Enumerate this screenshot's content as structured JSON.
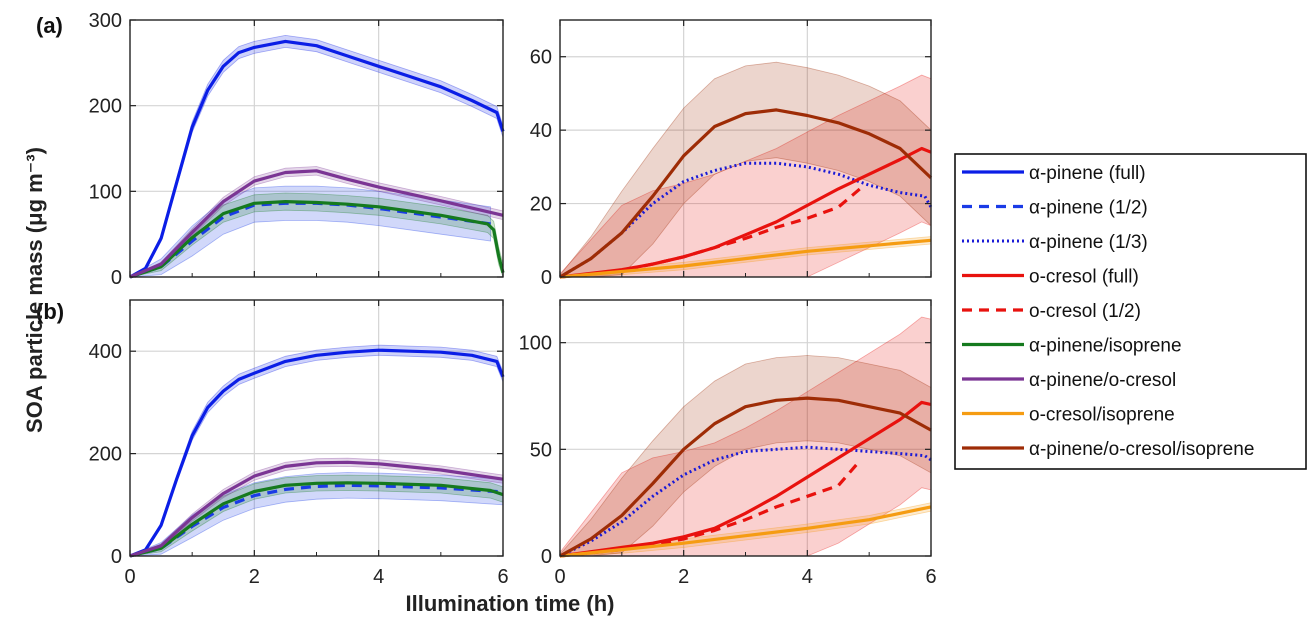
{
  "figure": {
    "xlabel": "Illumination time (h)",
    "ylabel": "SOA particle mass (μg m⁻³)",
    "panel_labels": [
      "(a)",
      "(b)"
    ]
  },
  "legend": [
    {
      "key": "ap_full",
      "label": "α-pinene (full)",
      "color": "#0b1ee6",
      "dash": "solid"
    },
    {
      "key": "ap_half",
      "label": "α-pinene (1/2)",
      "color": "#1a3be6",
      "dash": "dashed"
    },
    {
      "key": "ap_third",
      "label": "α-pinene (1/3)",
      "color": "#1a1ad6",
      "dash": "dotted"
    },
    {
      "key": "oc_full",
      "label": "o-cresol (full)",
      "color": "#e8120e",
      "dash": "solid"
    },
    {
      "key": "oc_half",
      "label": "o-cresol (1/2)",
      "color": "#e8120e",
      "dash": "dashed"
    },
    {
      "key": "ap_iso",
      "label": "α-pinene/isoprene",
      "color": "#157a1e",
      "dash": "solid"
    },
    {
      "key": "ap_oc",
      "label": "α-pinene/o-cresol",
      "color": "#7b3594",
      "dash": "solid"
    },
    {
      "key": "oc_iso",
      "label": "o-cresol/isoprene",
      "color": "#f59c12",
      "dash": "solid"
    },
    {
      "key": "ap_oc_iso",
      "label": "α-pinene/o-cresol/isoprene",
      "color": "#9e2c06",
      "dash": "solid"
    }
  ],
  "chart_data": [
    {
      "type": "line",
      "panel": "(a) left",
      "xlim": [
        0,
        6
      ],
      "ylim": [
        0,
        300
      ],
      "xticks": [
        0,
        2,
        4,
        6
      ],
      "yticks": [
        0,
        100,
        200,
        300
      ],
      "grid": true,
      "series": [
        {
          "key": "ap_full",
          "band": 7,
          "x": [
            0,
            0.25,
            0.5,
            0.75,
            1,
            1.25,
            1.5,
            1.75,
            2,
            2.5,
            3,
            3.5,
            4,
            4.5,
            5,
            5.5,
            5.9,
            6
          ],
          "y": [
            0,
            10,
            45,
            110,
            175,
            218,
            246,
            262,
            268,
            275,
            270,
            258,
            246,
            234,
            222,
            206,
            192,
            170
          ]
        },
        {
          "key": "ap_half",
          "band": 20,
          "x": [
            0,
            0.5,
            1,
            1.5,
            2,
            2.5,
            3,
            3.5,
            4,
            5,
            5.8
          ],
          "y": [
            0,
            12,
            42,
            70,
            84,
            86,
            86,
            84,
            80,
            70,
            62
          ]
        },
        {
          "key": "ap_iso",
          "band": 10,
          "x": [
            0,
            0.5,
            1,
            1.5,
            2,
            2.5,
            3,
            3.5,
            4,
            5,
            5.75,
            5.85,
            5.93,
            6
          ],
          "y": [
            0,
            12,
            46,
            74,
            86,
            88,
            87,
            85,
            82,
            72,
            62,
            55,
            25,
            5
          ]
        },
        {
          "key": "ap_oc",
          "band": 5,
          "x": [
            0,
            0.5,
            1,
            1.5,
            2,
            2.5,
            3,
            3.5,
            4,
            5,
            6
          ],
          "y": [
            0,
            15,
            52,
            88,
            112,
            122,
            124,
            114,
            105,
            89,
            72
          ]
        }
      ]
    },
    {
      "type": "line",
      "panel": "(a) right",
      "xlim": [
        0,
        6
      ],
      "ylim": [
        0,
        70
      ],
      "xticks": [
        0,
        2,
        4,
        6
      ],
      "yticks": [
        0,
        20,
        40,
        60
      ],
      "grid": true,
      "series": [
        {
          "key": "ap_third",
          "x": [
            0,
            0.5,
            1,
            1.5,
            2,
            2.5,
            3,
            3.5,
            4,
            4.5,
            5,
            5.5,
            5.9,
            6
          ],
          "y": [
            0,
            5,
            12,
            20,
            26,
            29,
            31,
            31,
            30,
            28,
            25,
            23,
            22,
            19
          ]
        },
        {
          "key": "oc_full",
          "band": 20,
          "x": [
            0,
            0.5,
            1,
            1.5,
            2,
            2.5,
            3,
            3.5,
            4,
            4.5,
            5,
            5.5,
            5.85,
            6
          ],
          "y": [
            0,
            1,
            2,
            3.5,
            5.5,
            8,
            11.5,
            15,
            19.5,
            24,
            28,
            32,
            35,
            34
          ]
        },
        {
          "key": "oc_half",
          "x": [
            0,
            0.5,
            1,
            1.5,
            2,
            2.5,
            3,
            3.5,
            4,
            4.5,
            4.85
          ],
          "y": [
            0,
            0.8,
            1.8,
            3.5,
            5.5,
            8,
            10.5,
            13.5,
            16,
            19,
            24
          ]
        },
        {
          "key": "oc_iso",
          "band": 1,
          "x": [
            0,
            1,
            2,
            3,
            4,
            5,
            6
          ],
          "y": [
            0,
            1.5,
            3,
            5,
            7,
            8.5,
            10
          ]
        },
        {
          "key": "ap_oc_iso",
          "band": 13,
          "x": [
            0,
            0.5,
            1,
            1.5,
            2,
            2.5,
            3,
            3.5,
            4,
            4.5,
            5,
            5.5,
            6
          ],
          "y": [
            0,
            5,
            12,
            22,
            33,
            41,
            44.5,
            45.5,
            44,
            42,
            39,
            35,
            27
          ]
        }
      ]
    },
    {
      "type": "line",
      "panel": "(b) left",
      "xlim": [
        0,
        6
      ],
      "ylim": [
        0,
        500
      ],
      "xticks": [
        0,
        2,
        4,
        6
      ],
      "yticks": [
        0,
        200,
        400
      ],
      "grid": true,
      "series": [
        {
          "key": "ap_full",
          "band": 10,
          "x": [
            0,
            0.25,
            0.5,
            0.75,
            1,
            1.25,
            1.5,
            1.75,
            2,
            2.5,
            3,
            3.5,
            4,
            4.5,
            5,
            5.5,
            5.9,
            6
          ],
          "y": [
            0,
            12,
            60,
            150,
            235,
            290,
            322,
            345,
            357,
            380,
            392,
            398,
            402,
            400,
            398,
            392,
            380,
            350
          ]
        },
        {
          "key": "ap_half",
          "band": 25,
          "x": [
            0,
            0.5,
            1,
            1.5,
            2,
            2.5,
            3,
            3.5,
            4,
            5,
            6
          ],
          "y": [
            0,
            15,
            58,
            95,
            118,
            130,
            136,
            138,
            137,
            133,
            125
          ]
        },
        {
          "key": "ap_iso",
          "band": 15,
          "x": [
            0,
            0.5,
            1,
            1.5,
            2,
            2.5,
            3,
            3.5,
            4,
            5,
            5.8,
            6
          ],
          "y": [
            0,
            15,
            62,
            102,
            126,
            138,
            142,
            143,
            142,
            138,
            128,
            120
          ]
        },
        {
          "key": "ap_oc",
          "band": 8,
          "x": [
            0,
            0.5,
            1,
            1.5,
            2,
            2.5,
            3,
            3.5,
            4,
            5,
            6
          ],
          "y": [
            0,
            20,
            75,
            122,
            156,
            175,
            182,
            183,
            180,
            168,
            150
          ]
        }
      ]
    },
    {
      "type": "line",
      "panel": "(b) right",
      "xlim": [
        0,
        6
      ],
      "ylim": [
        0,
        120
      ],
      "xticks": [
        0,
        2,
        4,
        6
      ],
      "yticks": [
        0,
        50,
        100
      ],
      "grid": true,
      "series": [
        {
          "key": "ap_third",
          "x": [
            0,
            0.5,
            1,
            1.5,
            2,
            2.5,
            3,
            3.5,
            4,
            4.5,
            5,
            5.5,
            5.9,
            6
          ],
          "y": [
            0,
            7,
            16,
            28,
            38,
            45,
            49,
            50,
            51,
            50,
            49,
            48,
            47,
            45
          ]
        },
        {
          "key": "oc_full",
          "band": 40,
          "x": [
            0,
            0.5,
            1,
            1.5,
            2,
            2.5,
            3,
            3.5,
            4,
            4.5,
            5,
            5.5,
            5.85,
            6
          ],
          "y": [
            0,
            2,
            4,
            6,
            9,
            13,
            20,
            28,
            37,
            46,
            55,
            64,
            72,
            71
          ]
        },
        {
          "key": "oc_half",
          "x": [
            0,
            0.5,
            1,
            1.5,
            2,
            2.5,
            3,
            3.5,
            4,
            4.5,
            4.8
          ],
          "y": [
            0,
            1.5,
            3,
            5,
            8,
            12,
            17,
            23,
            28,
            33,
            43
          ]
        },
        {
          "key": "oc_iso",
          "band": 2,
          "x": [
            0,
            1,
            2,
            3,
            4,
            5,
            6
          ],
          "y": [
            0,
            3,
            6,
            9.5,
            13,
            17,
            23
          ]
        },
        {
          "key": "ap_oc_iso",
          "band": 20,
          "x": [
            0,
            0.5,
            1,
            1.5,
            2,
            2.5,
            3,
            3.5,
            4,
            4.5,
            5,
            5.5,
            6
          ],
          "y": [
            0,
            8,
            19,
            34,
            50,
            62,
            70,
            73,
            74,
            73,
            70,
            67,
            59
          ]
        }
      ]
    }
  ]
}
